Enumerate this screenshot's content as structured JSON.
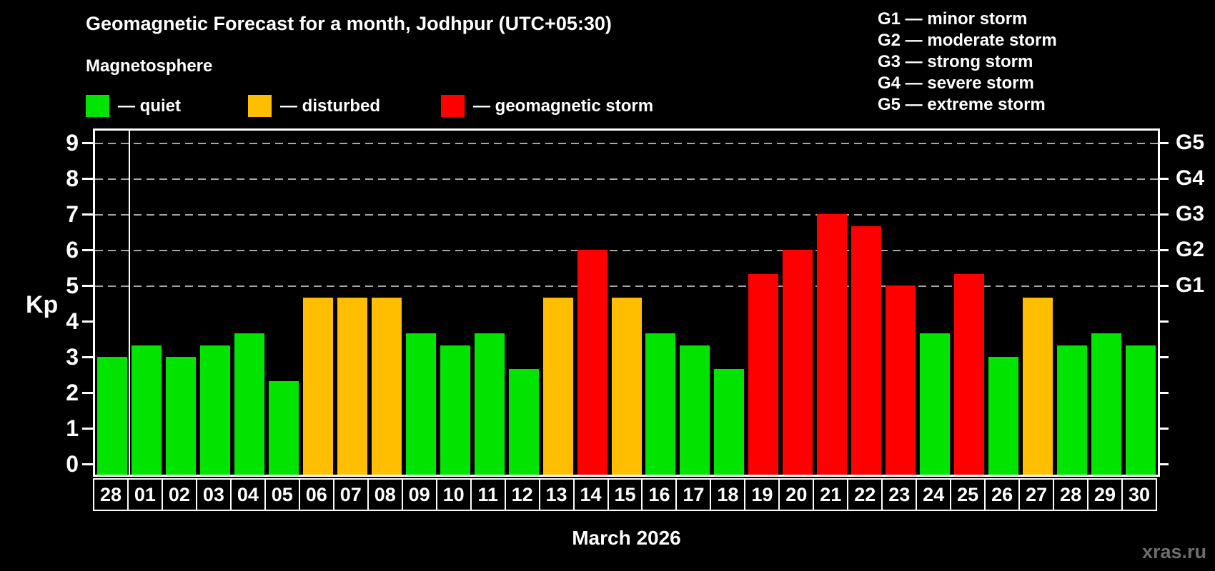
{
  "header": {
    "title": "Geomagnetic Forecast for a month, Jodhpur (UTC+05:30)",
    "subtitle": "Magnetosphere"
  },
  "legend": [
    {
      "status": "quiet",
      "label": "— quiet"
    },
    {
      "status": "disturbed",
      "label": "— disturbed"
    },
    {
      "status": "storm",
      "label": "— geomagnetic storm"
    }
  ],
  "g_scale_legend": [
    "G1 — minor storm",
    "G2 — moderate storm",
    "G3 — strong storm",
    "G4 — severe storm",
    "G5 — extreme storm"
  ],
  "y_axis": {
    "label": "Kp",
    "ticks": [
      "0",
      "1",
      "2",
      "3",
      "4",
      "5",
      "6",
      "7",
      "8",
      "9"
    ]
  },
  "right_axis": {
    "labels": [
      {
        "text": "G1",
        "kp": 5
      },
      {
        "text": "G2",
        "kp": 6
      },
      {
        "text": "G3",
        "kp": 7
      },
      {
        "text": "G4",
        "kp": 8
      },
      {
        "text": "G5",
        "kp": 9
      }
    ]
  },
  "x_axis": {
    "caption": "March 2026"
  },
  "watermark": "xras.ru",
  "colors": {
    "background": "#000000",
    "quiet": "#00e400",
    "disturbed": "#ffbe00",
    "storm": "#ff0000",
    "grid": "#a6a6a6",
    "axis": "#ffffff",
    "watermark": "#6e6e6e"
  },
  "chart_data": {
    "type": "bar",
    "title": "Geomagnetic Forecast for a month, Jodhpur (UTC+05:30)",
    "subtitle": "Magnetosphere",
    "xlabel": "March 2026",
    "ylabel": "Kp",
    "ylim": [
      0,
      9
    ],
    "grid_levels": [
      5,
      6,
      7,
      8,
      9
    ],
    "legend_position": "top",
    "categories": [
      "28",
      "01",
      "02",
      "03",
      "04",
      "05",
      "06",
      "07",
      "08",
      "09",
      "10",
      "11",
      "12",
      "13",
      "14",
      "15",
      "16",
      "17",
      "18",
      "19",
      "20",
      "21",
      "22",
      "23",
      "24",
      "25",
      "26",
      "27",
      "28",
      "29",
      "30"
    ],
    "values": [
      3,
      3.33,
      3,
      3.33,
      3.67,
      2.33,
      4.67,
      4.67,
      4.67,
      3.67,
      3.33,
      3.67,
      2.67,
      4.67,
      6,
      4.67,
      3.67,
      3.33,
      2.67,
      5.33,
      6,
      7,
      6.67,
      5,
      3.67,
      5.33,
      3,
      4.67,
      3.33,
      3.67,
      3.33
    ],
    "statuses": [
      "quiet",
      "quiet",
      "quiet",
      "quiet",
      "quiet",
      "quiet",
      "disturbed",
      "disturbed",
      "disturbed",
      "quiet",
      "quiet",
      "quiet",
      "quiet",
      "disturbed",
      "storm",
      "disturbed",
      "quiet",
      "quiet",
      "quiet",
      "storm",
      "storm",
      "storm",
      "storm",
      "storm",
      "quiet",
      "storm",
      "quiet",
      "disturbed",
      "quiet",
      "quiet",
      "quiet"
    ],
    "month_boundary_after_index": 0
  }
}
